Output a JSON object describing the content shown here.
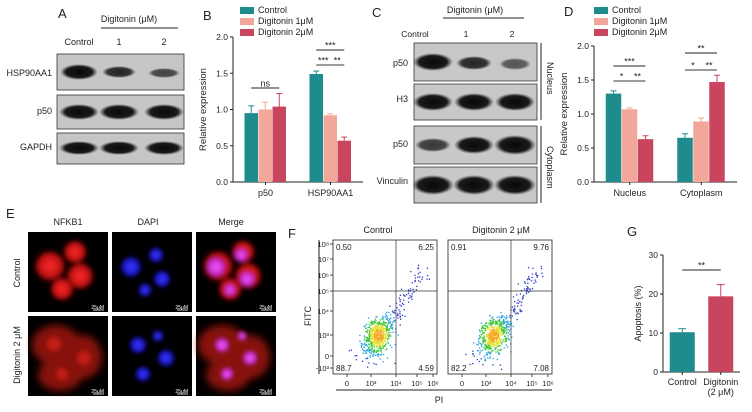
{
  "panel_letters": {
    "A": "A",
    "B": "B",
    "C": "C",
    "D": "D",
    "E": "E",
    "F": "F",
    "G": "G"
  },
  "colors": {
    "control": "#1e8c8c",
    "digitonin1": "#f2a79a",
    "digitonin2": "#c9455e"
  },
  "panelA": {
    "group_label": "Digitonin (μM)",
    "lanes": [
      "Control",
      "1",
      "2"
    ],
    "rows": [
      "HSP90AA1",
      "p50",
      "GAPDH"
    ]
  },
  "panelC": {
    "group_label": "Digitonin (μM)",
    "lanes": [
      "Control",
      "1",
      "2"
    ],
    "rows": [
      "p50",
      "H3",
      "p50",
      "Vinculin"
    ],
    "fractions": [
      "Nucleus",
      "Cytoplasm"
    ]
  },
  "panelE": {
    "columns": [
      "NFKB1",
      "DAPI",
      "Merge"
    ],
    "rows": [
      "Control",
      "Digitonin 2 μM"
    ],
    "scale_bar": "25μM"
  },
  "panelF": {
    "titles": [
      "Control",
      "Digitonin 2 μM"
    ],
    "quadrants": [
      {
        "ul": "0.50",
        "ur": "6.25",
        "ll": "88.7",
        "lr": "4.59"
      },
      {
        "ul": "0.91",
        "ur": "9.76",
        "ll": "82.2",
        "lr": "7.08"
      }
    ],
    "xlabel": "PI",
    "ylabel": "FITC",
    "x_ticks": [
      "0",
      "10³",
      "10⁴",
      "10⁵",
      "10⁶"
    ],
    "y_ticks": [
      "10⁸",
      "10⁷",
      "10⁶",
      "10⁵",
      "10⁴",
      "10³",
      "0",
      "-10³"
    ]
  },
  "chart_data": [
    {
      "id": "B",
      "type": "bar",
      "categories": [
        "p50",
        "HSP90AA1"
      ],
      "series": [
        {
          "name": "Control",
          "values": [
            0.95,
            1.49
          ],
          "errors": [
            0.1,
            0.04
          ]
        },
        {
          "name": "Digitonin 1μM",
          "values": [
            1.0,
            0.92
          ],
          "errors": [
            0.1,
            0.02
          ]
        },
        {
          "name": "Digitonin 2μM",
          "values": [
            1.04,
            0.57
          ],
          "errors": [
            0.18,
            0.05
          ]
        }
      ],
      "ylabel": "Relative expression",
      "ylim": [
        0,
        2.0
      ],
      "yticks": [
        "0.0",
        "0.5",
        "1.0",
        "1.5",
        "2.0"
      ],
      "annotations": [
        "ns",
        "***",
        "***",
        "**"
      ],
      "legend_position": "top"
    },
    {
      "id": "D",
      "type": "bar",
      "categories": [
        "Nucleus",
        "Cytoplasm"
      ],
      "series": [
        {
          "name": "Control",
          "values": [
            1.3,
            0.65
          ],
          "errors": [
            0.04,
            0.06
          ]
        },
        {
          "name": "Digitonin 1μM",
          "values": [
            1.07,
            0.89
          ],
          "errors": [
            0.02,
            0.05
          ]
        },
        {
          "name": "Digitonin 2μM",
          "values": [
            0.63,
            1.47
          ],
          "errors": [
            0.05,
            0.1
          ]
        }
      ],
      "ylabel": "Relative expression",
      "ylim": [
        0,
        2.0
      ],
      "yticks": [
        "0.0",
        "0.5",
        "1.0",
        "1.5",
        "2.0"
      ],
      "annotations": [
        "***",
        "*",
        "**",
        "**",
        "*",
        "**"
      ],
      "legend_position": "top"
    },
    {
      "id": "G",
      "type": "bar",
      "categories": [
        "Control",
        "Digitonin\n(2 μM)"
      ],
      "category_lines": [
        [
          "Control"
        ],
        [
          "Digitonin",
          "(2 μM)"
        ]
      ],
      "values": [
        10.2,
        19.4
      ],
      "errors": [
        0.9,
        3.0
      ],
      "ylabel": "Apoptosis (%)",
      "ylim": [
        0,
        30
      ],
      "yticks": [
        "0",
        "10",
        "20",
        "30"
      ],
      "annotations": [
        "**"
      ]
    }
  ]
}
